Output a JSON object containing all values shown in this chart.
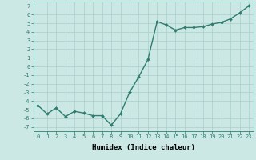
{
  "x": [
    0,
    1,
    2,
    3,
    4,
    5,
    6,
    7,
    8,
    9,
    10,
    11,
    12,
    13,
    14,
    15,
    16,
    17,
    18,
    19,
    20,
    21,
    22,
    23
  ],
  "y": [
    -4.5,
    -5.5,
    -4.8,
    -5.8,
    -5.2,
    -5.4,
    -5.7,
    -5.7,
    -6.8,
    -5.5,
    -3.0,
    -1.2,
    0.8,
    5.2,
    4.8,
    4.2,
    4.5,
    4.5,
    4.6,
    4.9,
    5.1,
    5.5,
    6.2,
    7.0
  ],
  "line_color": "#2e7d6e",
  "marker_color": "#2e7d6e",
  "bg_color": "#cce8e4",
  "grid_color": "#aacfcb",
  "xlabel": "Humidex (Indice chaleur)",
  "xlim": [
    -0.5,
    23.5
  ],
  "ylim": [
    -7.5,
    7.5
  ],
  "yticks": [
    -7,
    -6,
    -5,
    -4,
    -3,
    -2,
    -1,
    0,
    1,
    2,
    3,
    4,
    5,
    6,
    7
  ],
  "xticks": [
    0,
    1,
    2,
    3,
    4,
    5,
    6,
    7,
    8,
    9,
    10,
    11,
    12,
    13,
    14,
    15,
    16,
    17,
    18,
    19,
    20,
    21,
    22,
    23
  ],
  "tick_fontsize": 5.0,
  "xlabel_fontsize": 6.5,
  "line_width": 1.0,
  "marker_size": 2.0
}
